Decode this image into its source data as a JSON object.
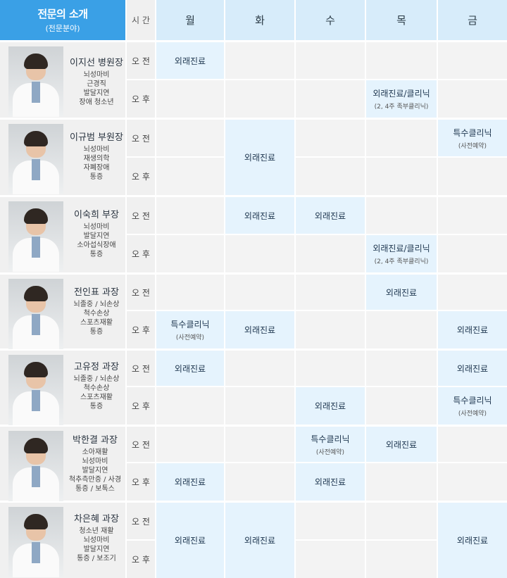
{
  "header": {
    "intro_title": "전문의 소개",
    "intro_sub": "(전문분야)",
    "time": "시 간",
    "days": [
      "월",
      "화",
      "수",
      "목",
      "금"
    ]
  },
  "slot_labels": {
    "am": "오 전",
    "pm": "오 후"
  },
  "doctors": [
    {
      "name": "이지선 병원장",
      "specialties": [
        "뇌성마비",
        "근경직",
        "발달지연",
        "장애 청소년"
      ]
    },
    {
      "name": "이규범 부원장",
      "specialties": [
        "뇌성마비",
        "재생의학",
        "자폐장애",
        "통증"
      ]
    },
    {
      "name": "이숙희 부장",
      "specialties": [
        "뇌성마비",
        "발달지연",
        "소아섭식장애",
        "통증"
      ]
    },
    {
      "name": "전인표 과장",
      "specialties": [
        "뇌졸중 / 뇌손상",
        "척수손상",
        "스포츠재활",
        "통증"
      ]
    },
    {
      "name": "고유정 과장",
      "specialties": [
        "뇌졸중 / 뇌손상",
        "척수손상",
        "스포츠재활",
        "통증"
      ]
    },
    {
      "name": "박한결 과장",
      "specialties": [
        "소아재활",
        "뇌성마비",
        "발달지연",
        "척추측만증 / 사경",
        "통증 / 보톡스"
      ]
    },
    {
      "name": "차은혜 과장",
      "specialties": [
        "청소년 재활",
        "뇌성마비",
        "발달지연",
        "통증 / 보조기"
      ]
    }
  ],
  "schedule": {
    "d0": {
      "am": [
        "외래진료",
        "",
        "",
        "",
        ""
      ],
      "pm": [
        "",
        "",
        "",
        "외래진료/클리닉",
        ""
      ],
      "pm_note": [
        "",
        "",
        "",
        "(2, 4주 족부클리닉)",
        ""
      ]
    },
    "d1": {
      "am": [
        "",
        "",
        "",
        "",
        "특수클리닉"
      ],
      "am_note": [
        "",
        "",
        "",
        "",
        "(사전예약)"
      ],
      "merged_tue": "외래진료"
    },
    "d2": {
      "am": [
        "",
        "외래진료",
        "외래진료",
        "",
        ""
      ],
      "pm": [
        "",
        "",
        "",
        "외래진료/클리닉",
        ""
      ],
      "pm_note": [
        "",
        "",
        "",
        "(2, 4주 족부클리닉)",
        ""
      ]
    },
    "d3": {
      "am": [
        "",
        "",
        "",
        "외래진료",
        ""
      ],
      "pm": [
        "특수클리닉",
        "외래진료",
        "",
        "",
        "외래진료"
      ],
      "pm_note": [
        "(사전예약)",
        "",
        "",
        "",
        ""
      ]
    },
    "d4": {
      "am": [
        "외래진료",
        "",
        "",
        "",
        "외래진료"
      ],
      "pm": [
        "",
        "",
        "외래진료",
        "",
        "특수클리닉"
      ],
      "pm_note": [
        "",
        "",
        "",
        "",
        "(사전예약)"
      ]
    },
    "d5": {
      "am": [
        "",
        "",
        "특수클리닉",
        "외래진료",
        ""
      ],
      "am_note": [
        "",
        "",
        "(사전예약)",
        "",
        ""
      ],
      "pm": [
        "외래진료",
        "",
        "외래진료",
        "",
        ""
      ]
    },
    "d6": {
      "merged": [
        "외래진료",
        "외래진료",
        "",
        "",
        "외래진료"
      ]
    }
  }
}
